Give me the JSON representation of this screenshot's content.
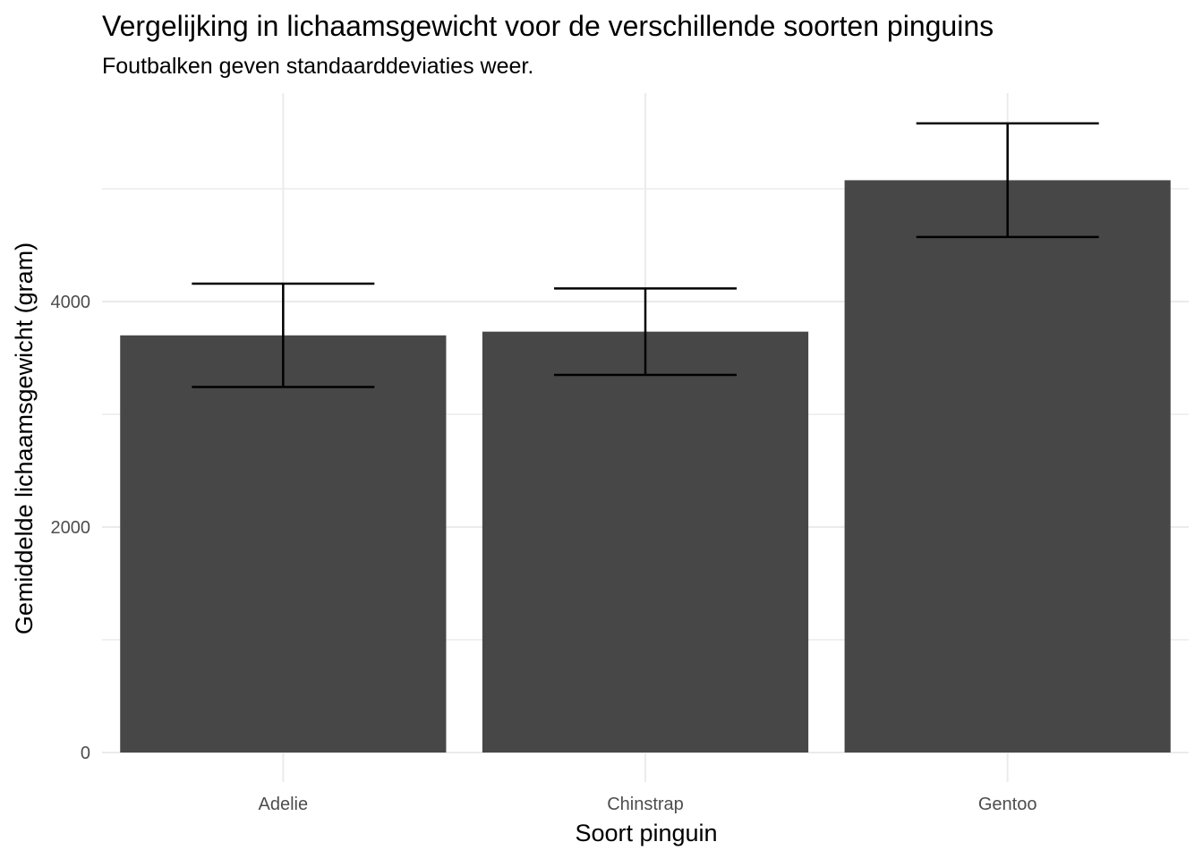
{
  "chart_data": {
    "type": "bar",
    "title": "Vergelijking in lichaamsgewicht voor de verschillende soorten pinguins",
    "subtitle": "Foutbalken geven standaarddeviaties weer.",
    "xlabel": "Soort pinguin",
    "ylabel": "Gemiddelde lichaamsgewicht (gram)",
    "categories": [
      "Adelie",
      "Chinstrap",
      "Gentoo"
    ],
    "values": [
      3700,
      3733,
      5076
    ],
    "error_low": [
      3242,
      3349,
      4572
    ],
    "error_high": [
      4159,
      4116,
      5580
    ],
    "y_ticks": [
      0,
      2000,
      4000
    ],
    "y_tick_labels": [
      "0",
      "2000",
      "4000"
    ],
    "ylim": [
      0,
      5850
    ],
    "grid": true,
    "legend": "none",
    "bar_color": "#474747"
  }
}
